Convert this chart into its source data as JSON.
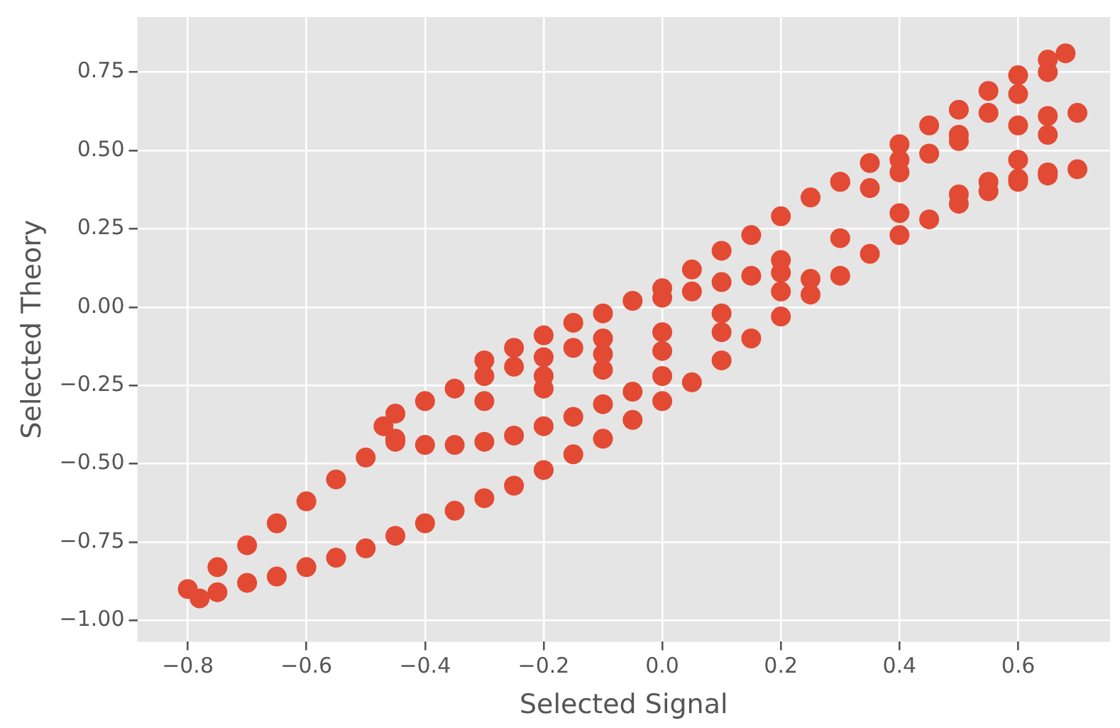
{
  "chart_data": {
    "type": "scatter",
    "xlabel": "Selected Signal",
    "ylabel": "Selected Theory",
    "marker": "circle",
    "grid": true,
    "legend": false,
    "xlim": [
      -0.885,
      0.755
    ],
    "ylim": [
      -1.068,
      0.926
    ],
    "xticks": [
      {
        "value": -0.8,
        "label": "−0.8"
      },
      {
        "value": -0.6,
        "label": "−0.6"
      },
      {
        "value": -0.4,
        "label": "−0.4"
      },
      {
        "value": -0.2,
        "label": "−0.2"
      },
      {
        "value": 0,
        "label": "0.0"
      },
      {
        "value": 0.2,
        "label": "0.2"
      },
      {
        "value": 0.4,
        "label": "0.4"
      },
      {
        "value": 0.6,
        "label": "0.6"
      }
    ],
    "yticks": [
      {
        "value": -1,
        "label": "−1.00"
      },
      {
        "value": -0.75,
        "label": "−0.75"
      },
      {
        "value": -0.5,
        "label": "−0.50"
      },
      {
        "value": -0.25,
        "label": "−0.25"
      },
      {
        "value": 0,
        "label": "0.00"
      },
      {
        "value": 0.25,
        "label": "0.25"
      },
      {
        "value": 0.5,
        "label": "0.50"
      },
      {
        "value": 0.75,
        "label": "0.75"
      }
    ],
    "series": [
      {
        "color": "#e24a33",
        "x": [
          -0.78,
          -0.75,
          -0.7,
          -0.65,
          -0.6,
          -0.55,
          -0.5,
          -0.45,
          -0.4,
          -0.35,
          -0.3,
          -0.25,
          -0.2,
          -0.15,
          -0.1,
          -0.05,
          0,
          0.05,
          0.1,
          0.15,
          0.2,
          0.25,
          0.3,
          0.35,
          0.4,
          0.45,
          0.5,
          0.55,
          0.6,
          0.65,
          0.7,
          -0.8,
          -0.75,
          -0.7,
          -0.65,
          -0.6,
          -0.55,
          -0.5,
          -0.45,
          -0.47,
          -0.45,
          -0.4,
          -0.35,
          -0.3,
          -0.25,
          -0.2,
          -0.15,
          -0.1,
          -0.45,
          -0.4,
          -0.35,
          -0.3,
          -0.25,
          -0.2,
          -0.15,
          -0.1,
          -0.05,
          0,
          0,
          0.05,
          0.1,
          0.15,
          0.2,
          0.25,
          0.3,
          0.35,
          0.4,
          0.45,
          0.5,
          0.55,
          0.6,
          0.65,
          0.68,
          0.65,
          0.6,
          0.55,
          0.5,
          0.45,
          0.4,
          0.35,
          0.3,
          0.4,
          0.5,
          0.6,
          0.65,
          0.7,
          0.65,
          0.6,
          0.55,
          0.65,
          0.6,
          0.5,
          0.4,
          0.3,
          0.2,
          -0.3,
          -0.25,
          -0.2,
          -0.15,
          -0.1,
          -0.05,
          0,
          0.05,
          0.1,
          0.15,
          0.2,
          0.25,
          -0.2,
          -0.1,
          0,
          0.1,
          0.2,
          -0.3,
          -0.2,
          -0.1,
          0,
          0.1
        ],
        "values": [
          -0.93,
          -0.91,
          -0.88,
          -0.86,
          -0.83,
          -0.8,
          -0.77,
          -0.73,
          -0.69,
          -0.65,
          -0.61,
          -0.57,
          -0.52,
          -0.47,
          -0.42,
          -0.36,
          -0.3,
          -0.24,
          -0.17,
          -0.1,
          -0.03,
          0.04,
          0.1,
          0.17,
          0.23,
          0.28,
          0.33,
          0.37,
          0.4,
          0.42,
          0.44,
          -0.9,
          -0.83,
          -0.76,
          -0.69,
          -0.62,
          -0.55,
          -0.48,
          -0.42,
          -0.38,
          -0.34,
          -0.3,
          -0.26,
          -0.22,
          -0.19,
          -0.16,
          -0.13,
          -0.1,
          -0.43,
          -0.44,
          -0.44,
          -0.43,
          -0.41,
          -0.38,
          -0.35,
          -0.31,
          -0.27,
          -0.22,
          0.06,
          0.12,
          0.18,
          0.23,
          0.29,
          0.35,
          0.4,
          0.46,
          0.52,
          0.58,
          0.63,
          0.69,
          0.74,
          0.79,
          0.81,
          0.75,
          0.68,
          0.62,
          0.55,
          0.49,
          0.43,
          0.38,
          0.4,
          0.47,
          0.53,
          0.58,
          0.61,
          0.62,
          0.55,
          0.47,
          0.4,
          0.43,
          0.41,
          0.36,
          0.3,
          0.22,
          0.15,
          -0.17,
          -0.13,
          -0.09,
          -0.05,
          -0.02,
          0.02,
          0.03,
          0.05,
          0.08,
          0.1,
          0.11,
          0.09,
          -0.22,
          -0.15,
          -0.08,
          -0.02,
          0.05,
          -0.3,
          -0.26,
          -0.2,
          -0.14,
          -0.08
        ]
      }
    ]
  }
}
